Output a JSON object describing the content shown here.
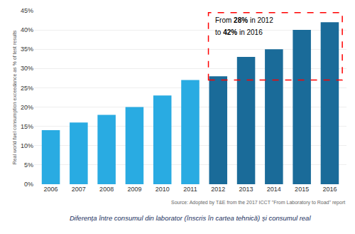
{
  "chart_data": {
    "type": "bar",
    "categories": [
      "2006",
      "2007",
      "2008",
      "2009",
      "2010",
      "2011",
      "2012",
      "2013",
      "2014",
      "2015",
      "2016"
    ],
    "values": [
      14,
      16,
      18,
      20,
      23,
      27,
      28,
      33,
      35,
      40,
      42
    ],
    "colors": [
      "#29abe2",
      "#29abe2",
      "#29abe2",
      "#29abe2",
      "#29abe2",
      "#29abe2",
      "#1a6b99",
      "#1a6b99",
      "#1a6b99",
      "#1a6b99",
      "#1a6b99"
    ],
    "ylabel": "Real world fuel consumption exceedance as % of test results",
    "ylim": [
      0,
      45
    ],
    "yticks": [
      {
        "value": 0,
        "label": "0%"
      },
      {
        "value": 5,
        "label": "5%"
      },
      {
        "value": 10,
        "label": "10%"
      },
      {
        "value": 15,
        "label": "15%"
      },
      {
        "value": 20,
        "label": "20%"
      },
      {
        "value": 25,
        "label": "25%"
      },
      {
        "value": 30,
        "label": "30%"
      },
      {
        "value": 35,
        "label": "35%"
      },
      {
        "value": 40,
        "label": "40%"
      },
      {
        "value": 45,
        "label": "45%"
      }
    ],
    "grid": true,
    "annotations": [
      "From 28% in 2012",
      "to 42% in 2016"
    ],
    "source": "Source: Adopted by T&E from the 2017 ICCT \"From Laboratory to Road\" report",
    "caption": "Diferența între consumul din laborator (înscris în cartea tehnică) și consumul real"
  }
}
